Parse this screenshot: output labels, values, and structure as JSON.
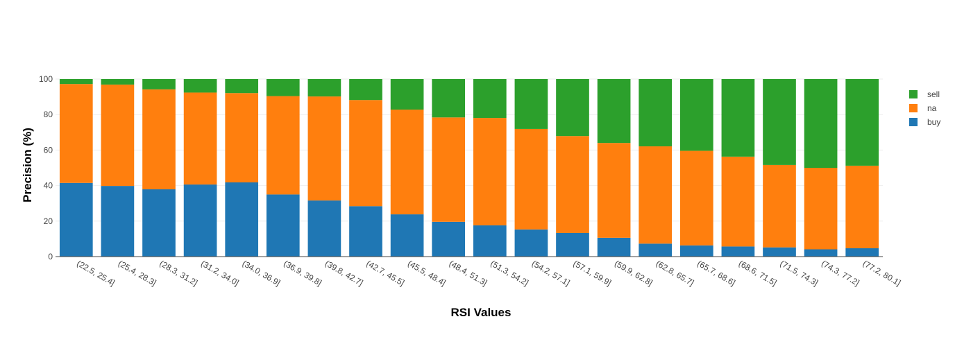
{
  "chart_data": {
    "type": "bar",
    "stacked": true,
    "title": "",
    "xlabel": "RSI Values",
    "ylabel": "Precision (%)",
    "ylim": [
      0,
      100
    ],
    "yticks": [
      0,
      20,
      40,
      60,
      80,
      100
    ],
    "grid": true,
    "legend_position": "top-right",
    "categories": [
      "(22.5, 25.4]",
      "(25.4, 28.3]",
      "(28.3, 31.2]",
      "(31.2, 34.0]",
      "(34.0, 36.9]",
      "(36.9, 39.8]",
      "(39.8, 42.7]",
      "(42.7, 45.5]",
      "(45.5, 48.4]",
      "(48.4, 51.3]",
      "(51.3, 54.2]",
      "(54.2, 57.1]",
      "(57.1, 59.9]",
      "(59.9, 62.8]",
      "(62.8, 65.7]",
      "(65.7, 68.6]",
      "(68.6, 71.5]",
      "(71.5, 74.3]",
      "(74.3, 77.2]",
      "(77.2, 80.1]"
    ],
    "series": [
      {
        "name": "buy",
        "color": "#1f77b4",
        "values": [
          41.5,
          39.8,
          37.9,
          40.6,
          41.8,
          35.0,
          31.6,
          28.4,
          23.8,
          19.6,
          17.6,
          15.3,
          13.3,
          10.6,
          7.3,
          6.3,
          5.7,
          5.2,
          4.1,
          4.7
        ]
      },
      {
        "name": "na",
        "color": "#ff7f0e",
        "values": [
          55.7,
          57.1,
          56.3,
          51.8,
          50.3,
          55.4,
          58.6,
          59.8,
          59.0,
          58.8,
          60.5,
          56.6,
          54.6,
          53.4,
          54.8,
          53.3,
          50.6,
          46.4,
          45.9,
          46.5
        ]
      },
      {
        "name": "sell",
        "color": "#2ca02c",
        "values": [
          2.8,
          3.1,
          5.8,
          7.6,
          7.9,
          9.6,
          9.8,
          11.8,
          17.2,
          21.6,
          21.9,
          28.1,
          32.1,
          36.0,
          37.9,
          40.4,
          43.7,
          48.4,
          50.0,
          48.8
        ]
      }
    ],
    "legend_order": [
      "sell",
      "na",
      "buy"
    ]
  }
}
